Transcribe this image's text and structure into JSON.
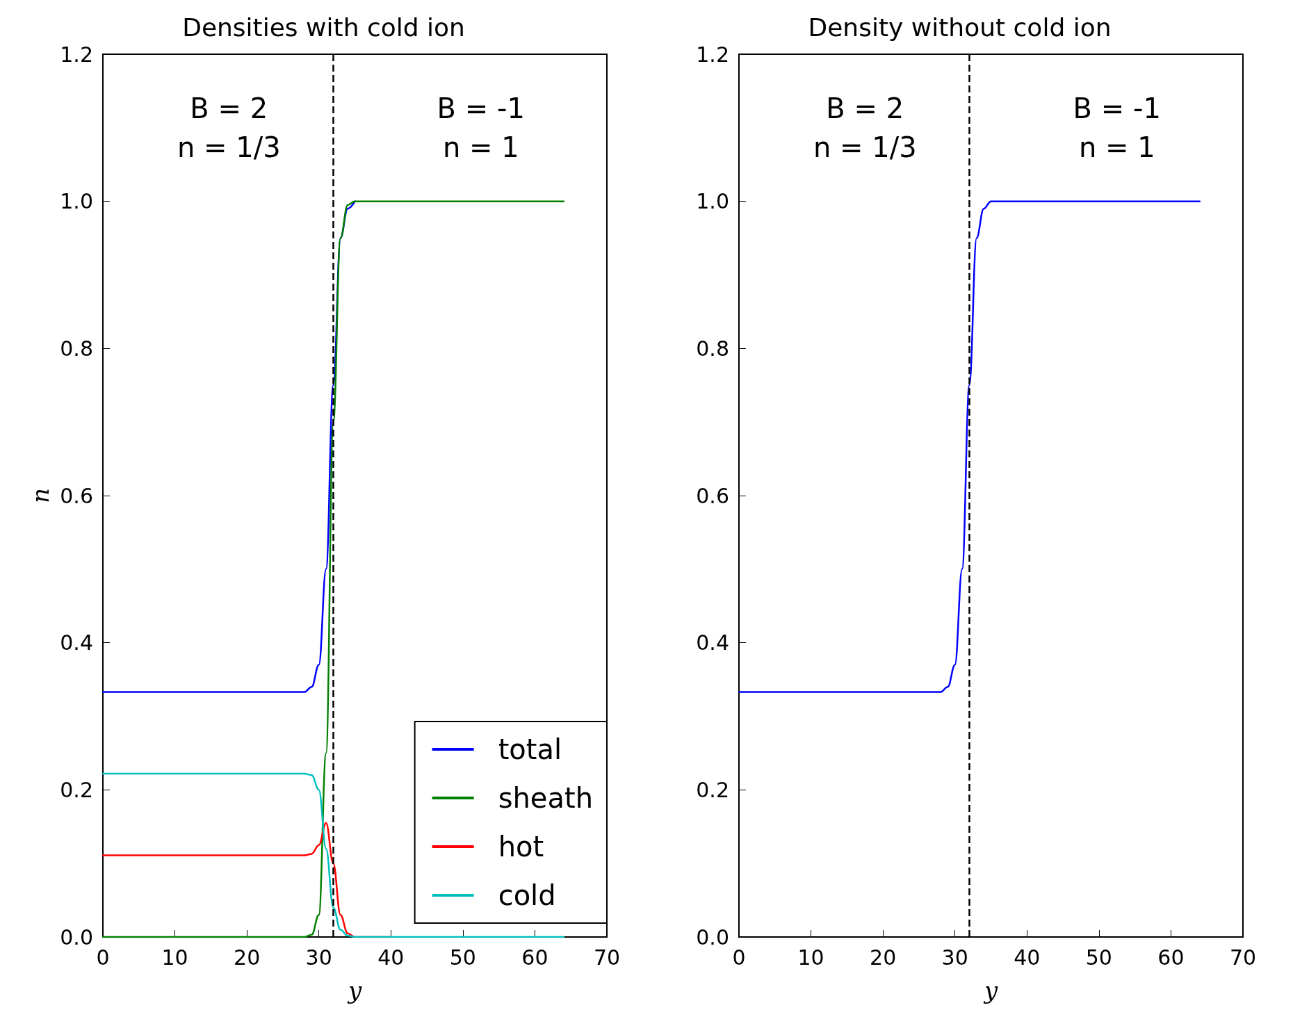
{
  "chart_data": [
    {
      "type": "line",
      "title": "Densities with cold ion",
      "xlabel": "y",
      "ylabel": "n",
      "x": [
        0,
        10,
        20,
        28,
        29,
        30,
        31,
        32,
        33,
        34,
        35,
        40,
        50,
        64
      ],
      "series": [
        {
          "name": "total",
          "color": "#0000ff",
          "values": [
            0.333,
            0.333,
            0.333,
            0.333,
            0.34,
            0.37,
            0.5,
            0.75,
            0.95,
            0.99,
            1.0,
            null,
            null,
            null
          ]
        },
        {
          "name": "sheath",
          "color": "#008000",
          "values": [
            0,
            0,
            0,
            0,
            0.003,
            0.03,
            0.25,
            0.7,
            0.95,
            0.995,
            1.0,
            1.0,
            1.0,
            1.0
          ]
        },
        {
          "name": "hot",
          "color": "#ff0000",
          "values": [
            0.111,
            0.111,
            0.111,
            0.111,
            0.113,
            0.125,
            0.155,
            0.1,
            0.03,
            0.005,
            0,
            0,
            null,
            null
          ]
        },
        {
          "name": "cold",
          "color": "#00bfbf",
          "values": [
            0.222,
            0.222,
            0.222,
            0.222,
            0.22,
            0.2,
            0.12,
            0.04,
            0.01,
            0.002,
            0,
            0,
            0,
            0
          ]
        }
      ],
      "xlim": [
        0,
        70
      ],
      "xticks": [
        0,
        10,
        20,
        30,
        40,
        50,
        60,
        70
      ],
      "ylim": [
        0,
        1.2
      ],
      "yticks": [
        {
          "value": 0,
          "label": "0.0"
        },
        {
          "value": 0.2,
          "label": "0.2"
        },
        {
          "value": 0.4,
          "label": "0.4"
        },
        {
          "value": 0.6,
          "label": "0.6"
        },
        {
          "value": 0.8,
          "label": "0.8"
        },
        {
          "value": 1.0,
          "label": "1.0"
        },
        {
          "value": 1.2,
          "label": "1.2"
        }
      ],
      "ref_lines": [
        {
          "axis": "x",
          "value": 32,
          "color": "#000000",
          "line_style": "dashed"
        }
      ],
      "annotations": [
        "B = 2\nn = 1/3",
        "B = -1\nn = 1"
      ],
      "grid": false,
      "legend": "bottom right",
      "marker": "none",
      "line_style": "solid"
    },
    {
      "type": "line",
      "title": "Density without cold ion",
      "xlabel": "y",
      "x": [
        0,
        10,
        20,
        28,
        29,
        30,
        31,
        32,
        33,
        34,
        35,
        40,
        50,
        64
      ],
      "series": [
        {
          "color": "#0000ff",
          "values": [
            0.333,
            0.333,
            0.333,
            0.333,
            0.34,
            0.37,
            0.5,
            0.75,
            0.95,
            0.99,
            1.0,
            1.0,
            1.0,
            1.0
          ]
        }
      ],
      "xlim": [
        0,
        70
      ],
      "xticks": [
        0,
        10,
        20,
        30,
        40,
        50,
        60,
        70
      ],
      "ylim": [
        0,
        1.2
      ],
      "yticks": [
        {
          "value": 0,
          "label": "0.0"
        },
        {
          "value": 0.2,
          "label": "0.2"
        },
        {
          "value": 0.4,
          "label": "0.4"
        },
        {
          "value": 0.6,
          "label": "0.6"
        },
        {
          "value": 0.8,
          "label": "0.8"
        },
        {
          "value": 1.0,
          "label": "1.0"
        },
        {
          "value": 1.2,
          "label": "1.2"
        }
      ],
      "ref_lines": [
        {
          "axis": "x",
          "value": 32,
          "color": "#000000",
          "line_style": "dashed"
        }
      ],
      "annotations": [
        "B = 2\nn = 1/3",
        "B = -1\nn = 1"
      ],
      "grid": false,
      "marker": "none",
      "line_style": "solid"
    }
  ]
}
